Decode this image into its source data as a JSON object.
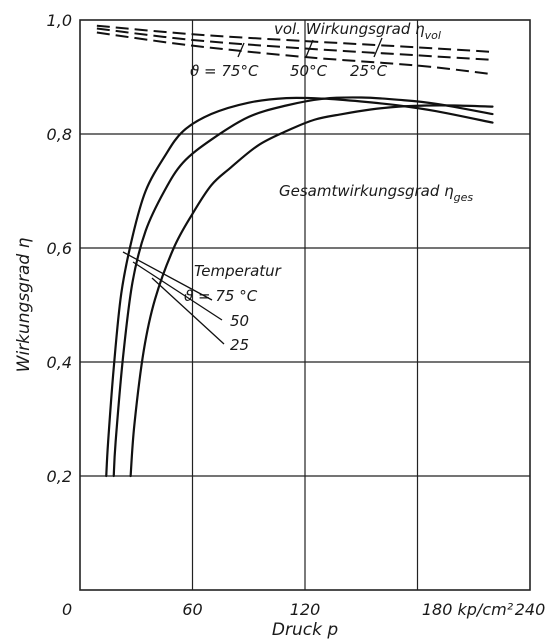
{
  "chart_data": {
    "type": "line",
    "xlabel": "Druck p",
    "ylabel": "Wirkungsgrad η",
    "xlim": [
      0,
      240
    ],
    "ylim": [
      0,
      1.0
    ],
    "x_ticks": [
      "0",
      "60",
      "120",
      "180 kp/cm²",
      "240"
    ],
    "y_ticks": [
      "0,2",
      "0,4",
      "0,6",
      "0,8",
      "1,0"
    ],
    "grid": true,
    "vol_label": "vol. Wirkungsgrad η",
    "vol_sub": "vol",
    "vol_temps": [
      "ϑ = 75°C",
      "50°C",
      "25°C"
    ],
    "ges_label": "Gesamtwirkungsgrad η",
    "ges_sub": "ges",
    "temp_title": "Temperatur",
    "temp_labels": [
      "ϑ = 75 °C",
      "50",
      "25"
    ],
    "series": [
      {
        "group": "vol",
        "x": [
          9,
          60,
          120,
          180,
          220
        ],
        "y": [
          0.99,
          0.975,
          0.963,
          0.952,
          0.944
        ]
      },
      {
        "group": "vol",
        "x": [
          9,
          60,
          120,
          180,
          220
        ],
        "y": [
          0.985,
          0.965,
          0.95,
          0.938,
          0.93
        ]
      },
      {
        "group": "vol",
        "x": [
          9,
          60,
          120,
          180,
          220
        ],
        "y": [
          0.978,
          0.955,
          0.935,
          0.92,
          0.905
        ]
      },
      {
        "group": "ges",
        "x": [
          14,
          15,
          18,
          22,
          28,
          35,
          45,
          55,
          70,
          90,
          110,
          130,
          150,
          170,
          190,
          220
        ],
        "y": [
          0.2,
          0.26,
          0.39,
          0.52,
          0.62,
          0.7,
          0.76,
          0.805,
          0.835,
          0.855,
          0.863,
          0.862,
          0.857,
          0.85,
          0.84,
          0.82
        ]
      },
      {
        "group": "ges",
        "x": [
          18,
          19,
          23,
          28,
          35,
          45,
          55,
          70,
          90,
          110,
          130,
          150,
          170,
          190,
          220
        ],
        "y": [
          0.2,
          0.26,
          0.41,
          0.54,
          0.63,
          0.7,
          0.75,
          0.79,
          0.83,
          0.85,
          0.862,
          0.864,
          0.86,
          0.853,
          0.835
        ]
      },
      {
        "group": "ges",
        "x": [
          27,
          29,
          34,
          40,
          50,
          60,
          70,
          80,
          95,
          110,
          125,
          140,
          155,
          170,
          185,
          200,
          220
        ],
        "y": [
          0.2,
          0.29,
          0.42,
          0.51,
          0.6,
          0.66,
          0.71,
          0.74,
          0.78,
          0.805,
          0.825,
          0.835,
          0.843,
          0.848,
          0.85,
          0.85,
          0.848
        ]
      }
    ]
  }
}
